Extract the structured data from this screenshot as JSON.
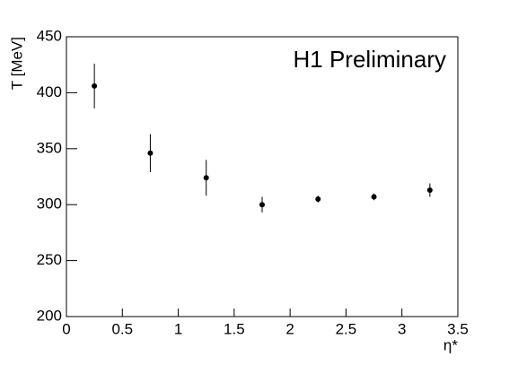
{
  "chart_data": {
    "type": "scatter",
    "annotation": "H1 Preliminary",
    "x_label": "η*",
    "y_label": "T [MeV]",
    "x": [
      0.25,
      0.75,
      1.25,
      1.75,
      2.25,
      2.75,
      3.25
    ],
    "series": [
      {
        "color": "#000000",
        "values": [
          406,
          346,
          324,
          300,
          305,
          307,
          313
        ],
        "errors": [
          20,
          17,
          16,
          7,
          3,
          3,
          6
        ]
      }
    ],
    "xlim": [
      0,
      3.5
    ],
    "xticks": [
      0,
      0.5,
      1,
      1.5,
      2,
      2.5,
      3,
      3.5
    ],
    "ylim": [
      200,
      450
    ],
    "yticks": [
      200,
      250,
      300,
      350,
      400,
      450
    ],
    "grid": false
  }
}
